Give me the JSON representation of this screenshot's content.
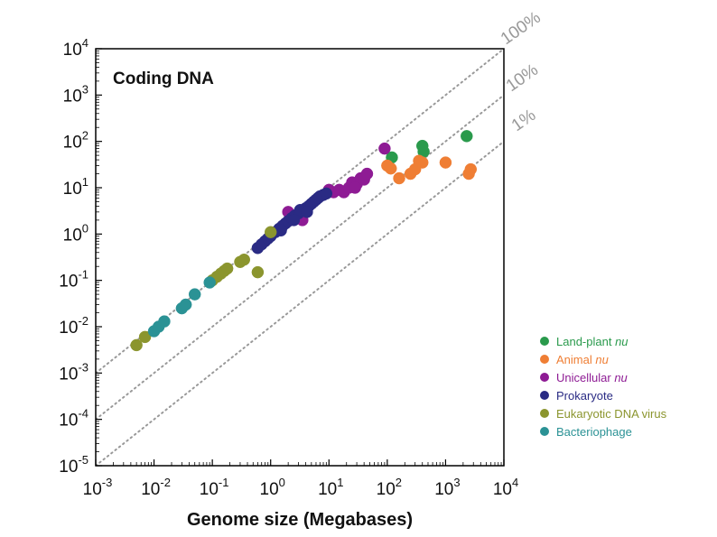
{
  "chart_data": {
    "type": "scatter",
    "title": "Coding DNA",
    "xlabel": "Genome size (Megabases)",
    "ylabel": "",
    "x_scale": "log",
    "y_scale": "log",
    "xlim": [
      0.001,
      10000
    ],
    "ylim": [
      1e-05,
      10000
    ],
    "x_ticks": [
      {
        "base": "10",
        "exp": "-3",
        "value": 0.001
      },
      {
        "base": "10",
        "exp": "-2",
        "value": 0.01
      },
      {
        "base": "10",
        "exp": "-1",
        "value": 0.1
      },
      {
        "base": "10",
        "exp": "0",
        "value": 1
      },
      {
        "base": "10",
        "exp": "1",
        "value": 10
      },
      {
        "base": "10",
        "exp": "2",
        "value": 100
      },
      {
        "base": "10",
        "exp": "3",
        "value": 1000
      },
      {
        "base": "10",
        "exp": "4",
        "value": 10000
      }
    ],
    "y_ticks": [
      {
        "base": "10",
        "exp": "-5",
        "value": 1e-05
      },
      {
        "base": "10",
        "exp": "-4",
        "value": 0.0001
      },
      {
        "base": "10",
        "exp": "-3",
        "value": 0.001
      },
      {
        "base": "10",
        "exp": "-2",
        "value": 0.01
      },
      {
        "base": "10",
        "exp": "-1",
        "value": 0.1
      },
      {
        "base": "10",
        "exp": "0",
        "value": 1
      },
      {
        "base": "10",
        "exp": "1",
        "value": 10
      },
      {
        "base": "10",
        "exp": "2",
        "value": 100
      },
      {
        "base": "10",
        "exp": "3",
        "value": 1000
      },
      {
        "base": "10",
        "exp": "4",
        "value": 10000
      }
    ],
    "reference_lines": [
      {
        "label": "100%",
        "fraction": 1,
        "color": "#999999"
      },
      {
        "label": "10%",
        "fraction": 0.1,
        "color": "#999999"
      },
      {
        "label": "1%",
        "fraction": 0.01,
        "color": "#999999"
      }
    ],
    "legend_position": "bottom-right, outside plot",
    "series": [
      {
        "name": "Land-plant",
        "name_italic": "nu",
        "color": "#2a9a4c",
        "points": [
          [
            120,
            45
          ],
          [
            400,
            80
          ],
          [
            420,
            60
          ],
          [
            2300,
            130
          ]
        ]
      },
      {
        "name": "Animal",
        "name_italic": "nu",
        "color": "#ef7e34",
        "points": [
          [
            100,
            30
          ],
          [
            115,
            26
          ],
          [
            160,
            16
          ],
          [
            250,
            20
          ],
          [
            300,
            25
          ],
          [
            350,
            38
          ],
          [
            400,
            35
          ],
          [
            1000,
            35
          ],
          [
            2500,
            20
          ],
          [
            2700,
            25
          ]
        ]
      },
      {
        "name": "Unicellular",
        "name_italic": "nu",
        "color": "#8e1b94",
        "points": [
          [
            2,
            3
          ],
          [
            3.5,
            2
          ],
          [
            10,
            9
          ],
          [
            12,
            8
          ],
          [
            15,
            9
          ],
          [
            18,
            8
          ],
          [
            22,
            10
          ],
          [
            25,
            13
          ],
          [
            30,
            12
          ],
          [
            35,
            16
          ],
          [
            40,
            15
          ],
          [
            45,
            20
          ],
          [
            28,
            10
          ],
          [
            90,
            70
          ]
        ]
      },
      {
        "name": "Prokaryote",
        "name_italic": "",
        "color": "#2a2b84",
        "points": [
          [
            0.6,
            0.5
          ],
          [
            0.7,
            0.6
          ],
          [
            0.8,
            0.7
          ],
          [
            0.9,
            0.8
          ],
          [
            1.0,
            0.9
          ],
          [
            1.2,
            1.1
          ],
          [
            1.4,
            1.3
          ],
          [
            1.6,
            1.5
          ],
          [
            1.8,
            1.7
          ],
          [
            2.0,
            1.9
          ],
          [
            2.3,
            2.2
          ],
          [
            2.6,
            2.5
          ],
          [
            3.0,
            2.8
          ],
          [
            3.5,
            3.2
          ],
          [
            4.0,
            3.6
          ],
          [
            4.5,
            4.0
          ],
          [
            5.0,
            4.5
          ],
          [
            5.5,
            5.0
          ],
          [
            6.0,
            5.5
          ],
          [
            6.5,
            6.0
          ],
          [
            7.0,
            6.5
          ],
          [
            8.0,
            7.0
          ],
          [
            9.0,
            7.5
          ],
          [
            1.5,
            1.2
          ],
          [
            2.5,
            2.0
          ],
          [
            3.2,
            3.3
          ],
          [
            4.2,
            3.0
          ]
        ]
      },
      {
        "name": "Eukaryotic DNA virus",
        "name_italic": "",
        "color": "#8b952e",
        "points": [
          [
            0.005,
            0.004
          ],
          [
            0.007,
            0.006
          ],
          [
            0.1,
            0.1
          ],
          [
            0.12,
            0.12
          ],
          [
            0.14,
            0.14
          ],
          [
            0.16,
            0.16
          ],
          [
            0.18,
            0.18
          ],
          [
            0.3,
            0.25
          ],
          [
            0.35,
            0.28
          ],
          [
            0.6,
            0.15
          ],
          [
            1.0,
            1.1
          ]
        ]
      },
      {
        "name": "Bacteriophage",
        "name_italic": "",
        "color": "#2b9295",
        "points": [
          [
            0.01,
            0.008
          ],
          [
            0.012,
            0.01
          ],
          [
            0.015,
            0.013
          ],
          [
            0.03,
            0.025
          ],
          [
            0.035,
            0.03
          ],
          [
            0.05,
            0.05
          ],
          [
            0.09,
            0.09
          ]
        ]
      }
    ]
  }
}
